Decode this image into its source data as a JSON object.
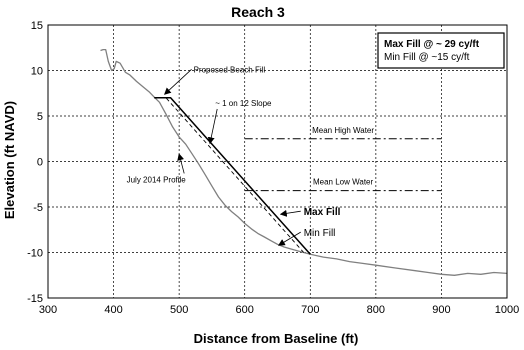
{
  "chart_data": {
    "type": "line",
    "title": "Reach 3",
    "xlabel": "Distance from Baseline (ft)",
    "ylabel": "Elevation (ft NAVD)",
    "xlim": [
      300,
      1000
    ],
    "ylim": [
      -15,
      15
    ],
    "x_ticks": [
      300,
      400,
      500,
      600,
      700,
      800,
      900,
      1000
    ],
    "y_ticks": [
      -15,
      -10,
      -5,
      0,
      5,
      10,
      15
    ],
    "grid": true,
    "legend_box": {
      "line1": "Max Fill @ ~ 29 cy/ft",
      "line2": "Min Fill @ ~15 cy/ft"
    },
    "series": [
      {
        "role": "july-2014-profile",
        "color": "#808080",
        "dash": "solid",
        "points": [
          [
            380,
            12.2
          ],
          [
            384,
            12.3
          ],
          [
            388,
            12.3
          ],
          [
            392,
            11.0
          ],
          [
            397,
            10.0
          ],
          [
            401,
            10.2
          ],
          [
            404,
            11.0
          ],
          [
            410,
            10.8
          ],
          [
            418,
            9.8
          ],
          [
            425,
            9.5
          ],
          [
            435,
            8.8
          ],
          [
            445,
            8.2
          ],
          [
            455,
            7.6
          ],
          [
            463,
            7.0
          ],
          [
            470,
            6.5
          ],
          [
            480,
            5.2
          ],
          [
            490,
            3.8
          ],
          [
            500,
            2.7
          ],
          [
            510,
            1.9
          ],
          [
            520,
            0.8
          ],
          [
            530,
            -0.3
          ],
          [
            540,
            -1.5
          ],
          [
            550,
            -2.7
          ],
          [
            560,
            -3.9
          ],
          [
            570,
            -4.8
          ],
          [
            580,
            -5.5
          ],
          [
            590,
            -6.1
          ],
          [
            600,
            -6.8
          ],
          [
            610,
            -7.4
          ],
          [
            620,
            -7.9
          ],
          [
            630,
            -8.3
          ],
          [
            640,
            -8.7
          ],
          [
            650,
            -9.1
          ],
          [
            660,
            -9.4
          ],
          [
            670,
            -9.6
          ],
          [
            680,
            -9.8
          ],
          [
            690,
            -10.0
          ],
          [
            700,
            -10.2
          ],
          [
            720,
            -10.5
          ],
          [
            740,
            -10.7
          ],
          [
            760,
            -11.0
          ],
          [
            780,
            -11.2
          ],
          [
            800,
            -11.4
          ],
          [
            830,
            -11.7
          ],
          [
            860,
            -12.0
          ],
          [
            880,
            -12.2
          ],
          [
            900,
            -12.4
          ],
          [
            920,
            -12.5
          ],
          [
            940,
            -12.3
          ],
          [
            960,
            -12.4
          ],
          [
            980,
            -12.2
          ],
          [
            1000,
            -12.3
          ]
        ]
      },
      {
        "role": "max-fill",
        "color": "#000000",
        "dash": "solid",
        "points": [
          [
            462,
            7.0
          ],
          [
            487,
            7.0
          ],
          [
            700,
            -10.2
          ]
        ]
      },
      {
        "role": "min-fill",
        "color": "#000000",
        "dash": "4,3",
        "points": [
          [
            470,
            7.0
          ],
          [
            480,
            7.0
          ],
          [
            690,
            -10.0
          ]
        ]
      }
    ],
    "reference_lines": [
      {
        "label": "Mean High Water",
        "y": 2.5,
        "x0": 600,
        "x1": 900
      },
      {
        "label": "Mean Low Water",
        "y": -3.2,
        "x0": 600,
        "x1": 900
      }
    ],
    "annotations": [
      {
        "text": "Proposed Beach Fill",
        "style": "normal",
        "x": 522,
        "y": 9.8,
        "arrow_to": [
          478,
          7.4
        ]
      },
      {
        "text": "~ 1 on 12 Slope",
        "style": "normal",
        "x": 555,
        "y": 6.1,
        "arrow_to": [
          547,
          2.0
        ]
      },
      {
        "text": "July 2014 Profile",
        "style": "normal",
        "x": 465,
        "y": -2.3,
        "arrow_to": [
          500,
          0.8
        ]
      },
      {
        "text": "Max Fill",
        "style": "bold",
        "x": 690,
        "y": -5.9,
        "arrow_to": [
          655,
          -5.8
        ]
      },
      {
        "text": "Min Fill",
        "style": "medium",
        "x": 690,
        "y": -8.2,
        "arrow_to": [
          652,
          -9.2
        ]
      }
    ]
  }
}
